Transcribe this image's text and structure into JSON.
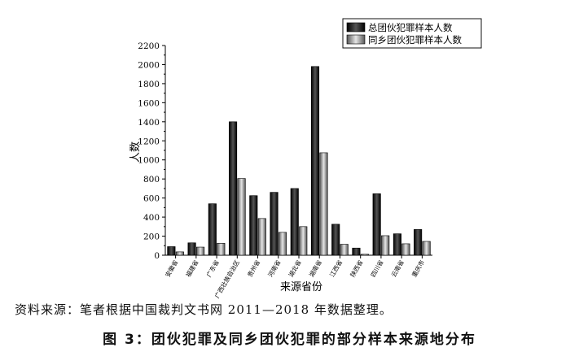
{
  "chart_data": {
    "type": "bar",
    "categories": [
      "安徽省",
      "福建省",
      "广东省",
      "广西壮族自治区",
      "贵州省",
      "河南省",
      "湖北省",
      "湖南省",
      "江西省",
      "陕西省",
      "四川省",
      "云南省",
      "重庆市"
    ],
    "series": [
      {
        "name": "总团伙犯罪样本人数",
        "values": [
          90,
          130,
          540,
          1400,
          625,
          660,
          700,
          1980,
          325,
          75,
          645,
          225,
          270
        ],
        "color": "#1a1a1a"
      },
      {
        "name": "同乡团伙犯罪样本人数",
        "values": [
          35,
          85,
          125,
          805,
          385,
          240,
          300,
          1075,
          115,
          10,
          205,
          120,
          145
        ],
        "color": "#8c8c8c"
      }
    ],
    "xlabel": "来源省份",
    "ylabel": "人数",
    "ylim": [
      0,
      2200
    ],
    "yticks": [
      0,
      200,
      400,
      600,
      800,
      1000,
      1200,
      1400,
      1600,
      1800,
      2000,
      2200
    ],
    "grid": false,
    "legend_position": "top-right"
  },
  "source_note": "资料来源：笔者根据中国裁判文书网 2011—2018 年数据整理。",
  "figure_caption": "图 3：团伙犯罪及同乡团伙犯罪的部分样本来源地分布"
}
